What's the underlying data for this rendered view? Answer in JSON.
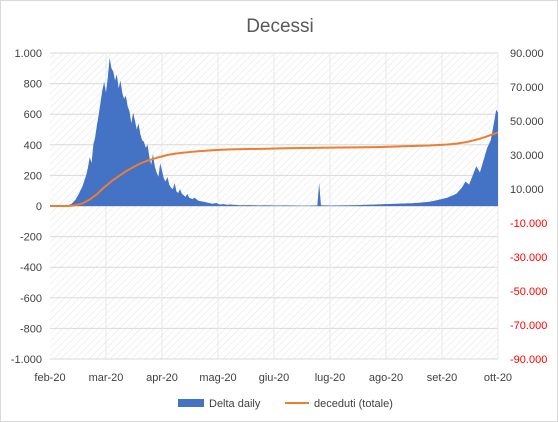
{
  "chart_data": {
    "type": "area",
    "title": "Decessi",
    "xlabel": "",
    "ylabel": "",
    "categories": [
      "feb-20",
      "mar-20",
      "apr-20",
      "mag-20",
      "giu-20",
      "lug-20",
      "ago-20",
      "set-20",
      "ott-20"
    ],
    "ylim": [
      -1000,
      1000
    ],
    "y2lim": [
      -90000,
      90000
    ],
    "yticks": [
      "1.000",
      "800",
      "600",
      "400",
      "200",
      "0",
      "-200",
      "-400",
      "-600",
      "-800",
      "-1.000"
    ],
    "y2ticks": [
      "90.000",
      "70.000",
      "50.000",
      "30.000",
      "10.000",
      "-10.000",
      "-30.000",
      "-50.000",
      "-70.000",
      "-90.000"
    ],
    "grid": true,
    "legend_position": "bottom",
    "series": [
      {
        "name": "Delta daily",
        "type": "area",
        "axis": "left",
        "color": "#4472c4",
        "points": [
          [
            0,
            0
          ],
          [
            8,
            0
          ],
          [
            10,
            5
          ],
          [
            12,
            15
          ],
          [
            14,
            40
          ],
          [
            16,
            80
          ],
          [
            18,
            130
          ],
          [
            20,
            200
          ],
          [
            21,
            250
          ],
          [
            22,
            320
          ],
          [
            23,
            280
          ],
          [
            24,
            400
          ],
          [
            25,
            450
          ],
          [
            26,
            530
          ],
          [
            27,
            600
          ],
          [
            28,
            680
          ],
          [
            29,
            760
          ],
          [
            30,
            810
          ],
          [
            31,
            740
          ],
          [
            32,
            840
          ],
          [
            33,
            970
          ],
          [
            34,
            900
          ],
          [
            35,
            880
          ],
          [
            36,
            820
          ],
          [
            37,
            860
          ],
          [
            38,
            770
          ],
          [
            39,
            820
          ],
          [
            40,
            740
          ],
          [
            41,
            700
          ],
          [
            42,
            720
          ],
          [
            43,
            650
          ],
          [
            44,
            620
          ],
          [
            45,
            540
          ],
          [
            46,
            610
          ],
          [
            47,
            560
          ],
          [
            48,
            500
          ],
          [
            49,
            540
          ],
          [
            50,
            470
          ],
          [
            51,
            430
          ],
          [
            52,
            420
          ],
          [
            53,
            380
          ],
          [
            54,
            400
          ],
          [
            55,
            320
          ],
          [
            56,
            270
          ],
          [
            57,
            340
          ],
          [
            58,
            260
          ],
          [
            59,
            220
          ],
          [
            60,
            190
          ],
          [
            61,
            280
          ],
          [
            62,
            230
          ],
          [
            63,
            180
          ],
          [
            64,
            160
          ],
          [
            65,
            190
          ],
          [
            66,
            140
          ],
          [
            67,
            120
          ],
          [
            68,
            110
          ],
          [
            69,
            150
          ],
          [
            70,
            95
          ],
          [
            71,
            85
          ],
          [
            72,
            110
          ],
          [
            73,
            80
          ],
          [
            74,
            70
          ],
          [
            75,
            60
          ],
          [
            76,
            80
          ],
          [
            77,
            55
          ],
          [
            78,
            50
          ],
          [
            79,
            45
          ],
          [
            80,
            55
          ],
          [
            82,
            35
          ],
          [
            84,
            30
          ],
          [
            86,
            25
          ],
          [
            88,
            20
          ],
          [
            90,
            15
          ],
          [
            92,
            20
          ],
          [
            94,
            10
          ],
          [
            96,
            12
          ],
          [
            98,
            8
          ],
          [
            100,
            10
          ],
          [
            105,
            5
          ],
          [
            110,
            6
          ],
          [
            115,
            4
          ],
          [
            120,
            5
          ],
          [
            125,
            3
          ],
          [
            130,
            4
          ],
          [
            135,
            3
          ],
          [
            140,
            2
          ],
          [
            145,
            3
          ],
          [
            148,
            4
          ],
          [
            149,
            150
          ],
          [
            150,
            5
          ],
          [
            155,
            3
          ],
          [
            160,
            4
          ],
          [
            165,
            5
          ],
          [
            170,
            6
          ],
          [
            175,
            8
          ],
          [
            180,
            10
          ],
          [
            185,
            12
          ],
          [
            190,
            14
          ],
          [
            195,
            16
          ],
          [
            200,
            18
          ],
          [
            205,
            22
          ],
          [
            210,
            28
          ],
          [
            215,
            40
          ],
          [
            220,
            55
          ],
          [
            225,
            80
          ],
          [
            228,
            120
          ],
          [
            230,
            160
          ],
          [
            232,
            140
          ],
          [
            234,
            200
          ],
          [
            236,
            260
          ],
          [
            238,
            220
          ],
          [
            240,
            300
          ],
          [
            242,
            380
          ],
          [
            244,
            430
          ],
          [
            246,
            560
          ],
          [
            247,
            630
          ],
          [
            248,
            610
          ]
        ]
      },
      {
        "name": "deceduti (totale)",
        "type": "line",
        "axis": "right",
        "color": "#ed7d31",
        "points": [
          [
            0,
            0
          ],
          [
            10,
            30
          ],
          [
            14,
            400
          ],
          [
            18,
            1500
          ],
          [
            22,
            3800
          ],
          [
            26,
            7000
          ],
          [
            30,
            11000
          ],
          [
            34,
            14500
          ],
          [
            38,
            17500
          ],
          [
            42,
            20400
          ],
          [
            46,
            22800
          ],
          [
            50,
            25000
          ],
          [
            54,
            26700
          ],
          [
            58,
            28000
          ],
          [
            62,
            29200
          ],
          [
            66,
            30200
          ],
          [
            70,
            30900
          ],
          [
            74,
            31400
          ],
          [
            78,
            31800
          ],
          [
            82,
            32200
          ],
          [
            86,
            32500
          ],
          [
            90,
            32800
          ],
          [
            95,
            33100
          ],
          [
            100,
            33300
          ],
          [
            110,
            33500
          ],
          [
            120,
            33700
          ],
          [
            130,
            34000
          ],
          [
            140,
            34100
          ],
          [
            150,
            34300
          ],
          [
            160,
            34400
          ],
          [
            170,
            34500
          ],
          [
            180,
            34600
          ],
          [
            190,
            34900
          ],
          [
            200,
            35300
          ],
          [
            210,
            35600
          ],
          [
            220,
            36200
          ],
          [
            225,
            36700
          ],
          [
            230,
            37500
          ],
          [
            234,
            38500
          ],
          [
            238,
            39600
          ],
          [
            242,
            41000
          ],
          [
            246,
            42500
          ],
          [
            248,
            43300
          ]
        ]
      }
    ]
  }
}
